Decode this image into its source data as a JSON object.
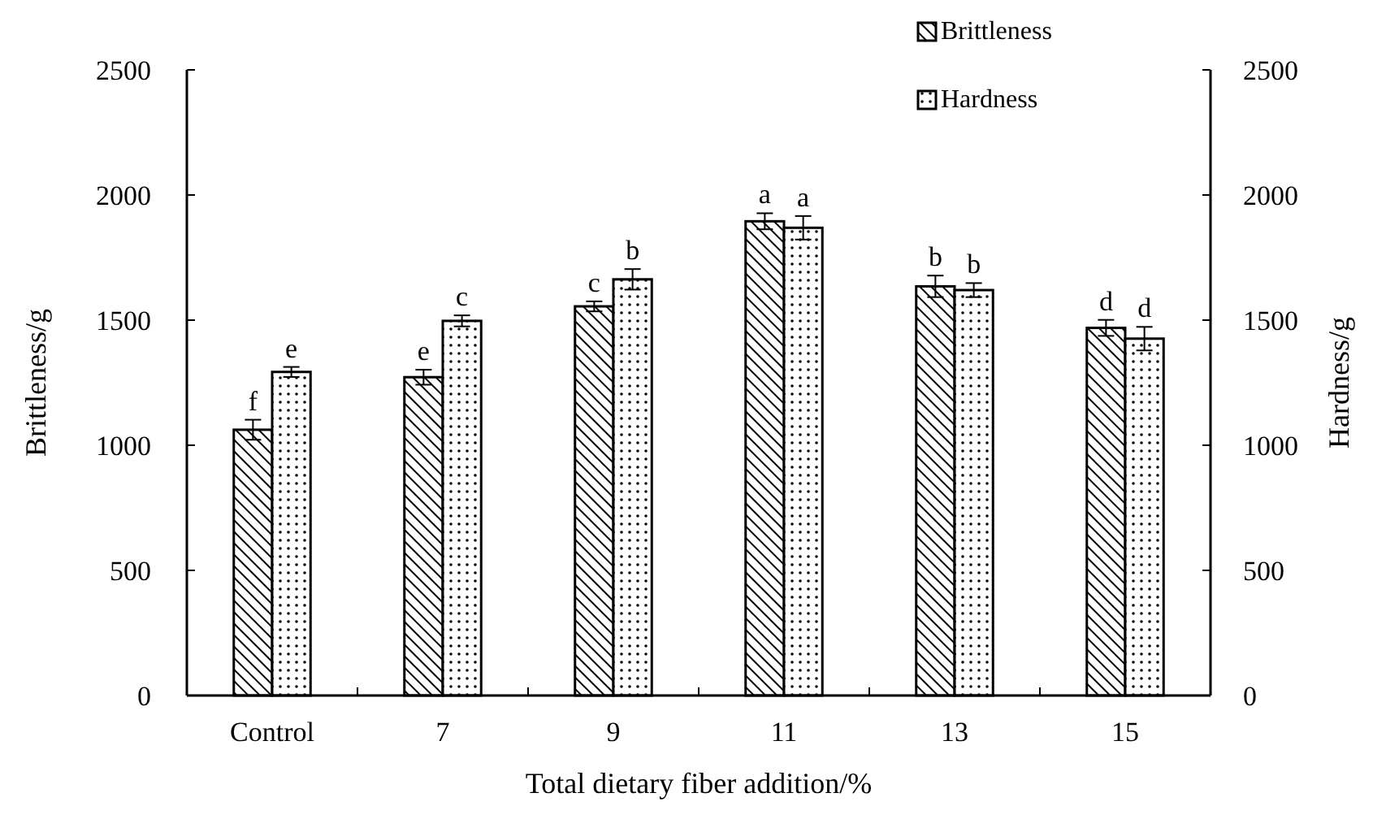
{
  "chart_data": {
    "type": "bar",
    "xlabel": "Total dietary fiber addition/%",
    "ylabel": "Brittleness/g",
    "y2label": "Hardness/g",
    "categories": [
      "Control",
      "7",
      "9",
      "11",
      "13",
      "15"
    ],
    "series": [
      {
        "name": "Brittleness",
        "color": "#000000",
        "values": [
          1062,
          1272,
          1555,
          1895,
          1635,
          1469
        ],
        "errors": [
          40,
          30,
          20,
          32,
          43,
          32
        ]
      },
      {
        "name": "Hardness",
        "color": "#000000",
        "values": [
          1293,
          1497,
          1663,
          1869,
          1620,
          1426
        ],
        "errors": [
          20,
          22,
          41,
          47,
          28,
          47
        ]
      }
    ],
    "ylim": [
      0,
      2500
    ],
    "yticks": [
      0,
      500,
      1000,
      1500,
      2000,
      2500
    ],
    "y2lim": [
      0,
      2500
    ],
    "y2ticks": [
      0,
      500,
      1000,
      1500,
      2000,
      2500
    ],
    "legend": "top right",
    "grid": false,
    "annotations": [
      {
        "text": "f",
        "x": "Control",
        "y": 1062
      },
      {
        "text": "e",
        "x": "Control",
        "y": 1293
      },
      {
        "text": "e",
        "x": "7",
        "y": 1272
      },
      {
        "text": "c",
        "x": "7",
        "y": 1497
      },
      {
        "text": "c",
        "x": "9",
        "y": 1555
      },
      {
        "text": "b",
        "x": "9",
        "y": 1663
      },
      {
        "text": "a",
        "x": "11",
        "y": 1895
      },
      {
        "text": "a",
        "x": "11",
        "y": 1869
      },
      {
        "text": "b",
        "x": "13",
        "y": 1635
      },
      {
        "text": "b",
        "x": "13",
        "y": 1620
      },
      {
        "text": "d",
        "x": "15",
        "y": 1469
      },
      {
        "text": "d",
        "x": "15",
        "y": 1426
      }
    ]
  }
}
